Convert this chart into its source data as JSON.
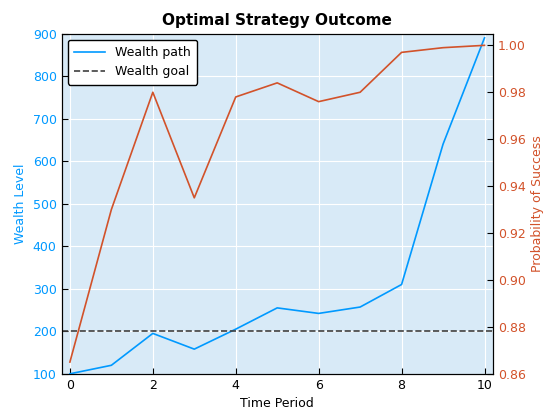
{
  "title": "Optimal Strategy Outcome",
  "xlabel": "Time Period",
  "ylabel_left": "Wealth Level",
  "ylabel_right": "Probability of Success",
  "wealth_x": [
    0,
    1,
    2,
    3,
    4,
    5,
    6,
    7,
    8,
    9,
    10
  ],
  "wealth_y": [
    100,
    120,
    195,
    158,
    205,
    255,
    242,
    257,
    310,
    640,
    890
  ],
  "prob_x": [
    0,
    1,
    2,
    3,
    4,
    5,
    6,
    7,
    8,
    9,
    10
  ],
  "prob_y": [
    0.865,
    0.93,
    0.98,
    0.935,
    0.978,
    0.984,
    0.976,
    0.98,
    0.997,
    0.999,
    1.0
  ],
  "wealth_goal": 200,
  "xlim": [
    -0.2,
    10.2
  ],
  "ylim_left": [
    100,
    900
  ],
  "ylim_right": [
    0.86,
    1.005
  ],
  "yticks_left": [
    100,
    200,
    300,
    400,
    500,
    600,
    700,
    800,
    900
  ],
  "yticks_right": [
    0.86,
    0.88,
    0.9,
    0.92,
    0.94,
    0.96,
    0.98,
    1.0
  ],
  "xticks": [
    0,
    2,
    4,
    6,
    8,
    10
  ],
  "wealth_color": "#0099FF",
  "prob_color": "#D2522A",
  "goal_color": "#404040",
  "background_color": "#D8EAF7",
  "grid_color": "#FFFFFF",
  "legend_labels": [
    "Wealth path",
    "Wealth goal"
  ],
  "wealth_linewidth": 1.2,
  "prob_linewidth": 1.2,
  "goal_linewidth": 1.2,
  "title_fontsize": 11,
  "label_fontsize": 9,
  "tick_fontsize": 9
}
